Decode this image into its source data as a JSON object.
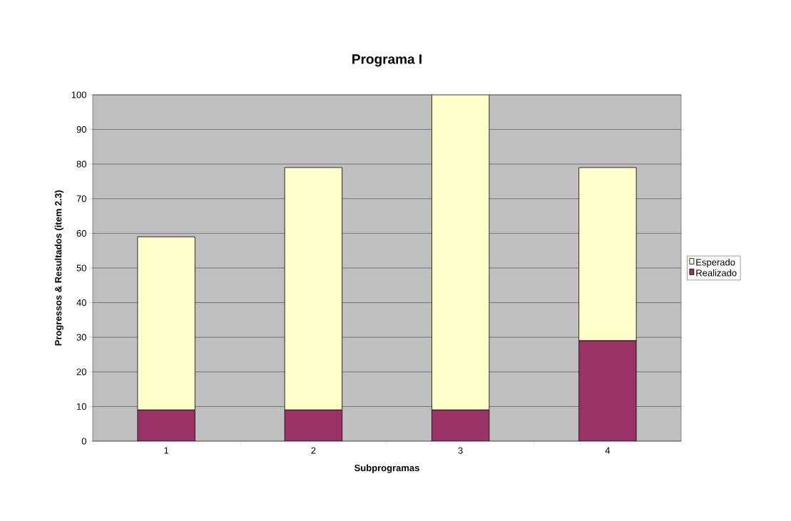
{
  "chart_data": {
    "type": "bar",
    "stacked": true,
    "title": "Programa I",
    "xlabel": "Subprogramas",
    "ylabel": "Progressos & Resultados (item 2.3)",
    "categories": [
      "1",
      "2",
      "3",
      "4"
    ],
    "series": [
      {
        "name": "Realizado",
        "color": "#993366",
        "values": [
          9,
          9,
          9,
          29
        ]
      },
      {
        "name": "Esperado",
        "color": "#ffffcc",
        "values": [
          50,
          70,
          91,
          50
        ]
      }
    ],
    "ylim": [
      0,
      100
    ],
    "yticks": [
      0,
      10,
      20,
      30,
      40,
      50,
      60,
      70,
      80,
      90,
      100
    ],
    "grid": "y",
    "legend": "right"
  }
}
